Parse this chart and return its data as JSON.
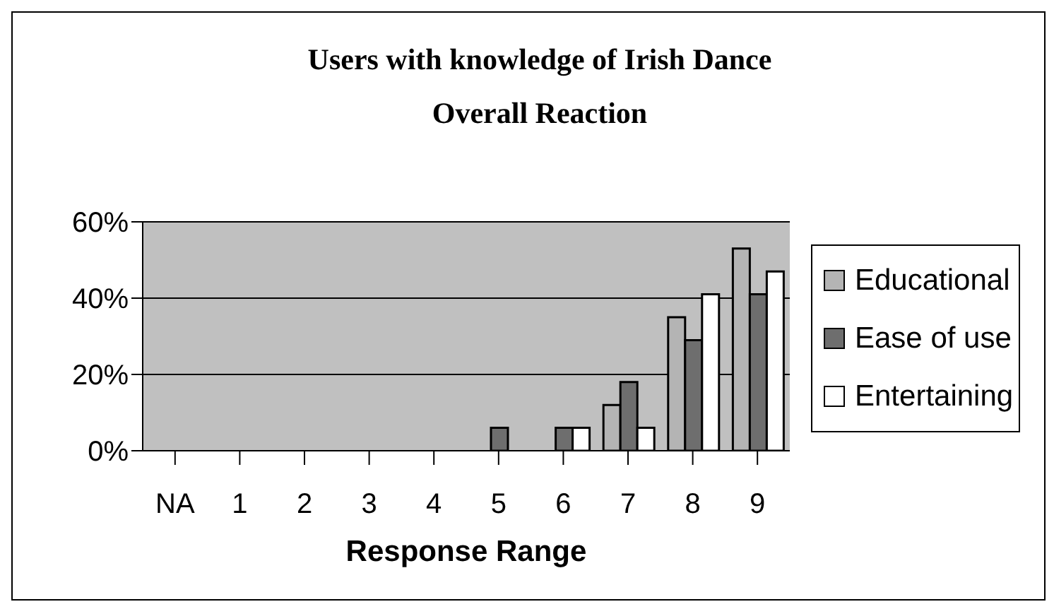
{
  "chart_data": {
    "type": "bar",
    "title": "Users with knowledge of Irish Dance\nOverall Reaction",
    "xlabel": "Response Range",
    "categories": [
      "NA",
      "1",
      "2",
      "3",
      "4",
      "5",
      "6",
      "7",
      "8",
      "9"
    ],
    "series": [
      {
        "name": "Educational",
        "color": "#b4b4b4",
        "values": [
          0,
          0,
          0,
          0,
          0,
          0,
          0,
          12,
          35,
          53
        ]
      },
      {
        "name": "Ease of use",
        "color": "#6e6e6e",
        "values": [
          0,
          0,
          0,
          0,
          0,
          6,
          6,
          18,
          29,
          41
        ]
      },
      {
        "name": "Entertaining",
        "color": "#ffffff",
        "values": [
          0,
          0,
          0,
          0,
          0,
          0,
          6,
          6,
          41,
          47
        ]
      }
    ],
    "ylim": [
      0,
      60
    ],
    "yticks": [
      {
        "value": 0,
        "label": "0%"
      },
      {
        "value": 20,
        "label": "20%"
      },
      {
        "value": 40,
        "label": "40%"
      },
      {
        "value": 60,
        "label": "60%"
      }
    ],
    "grid": "y",
    "legend": "right"
  }
}
